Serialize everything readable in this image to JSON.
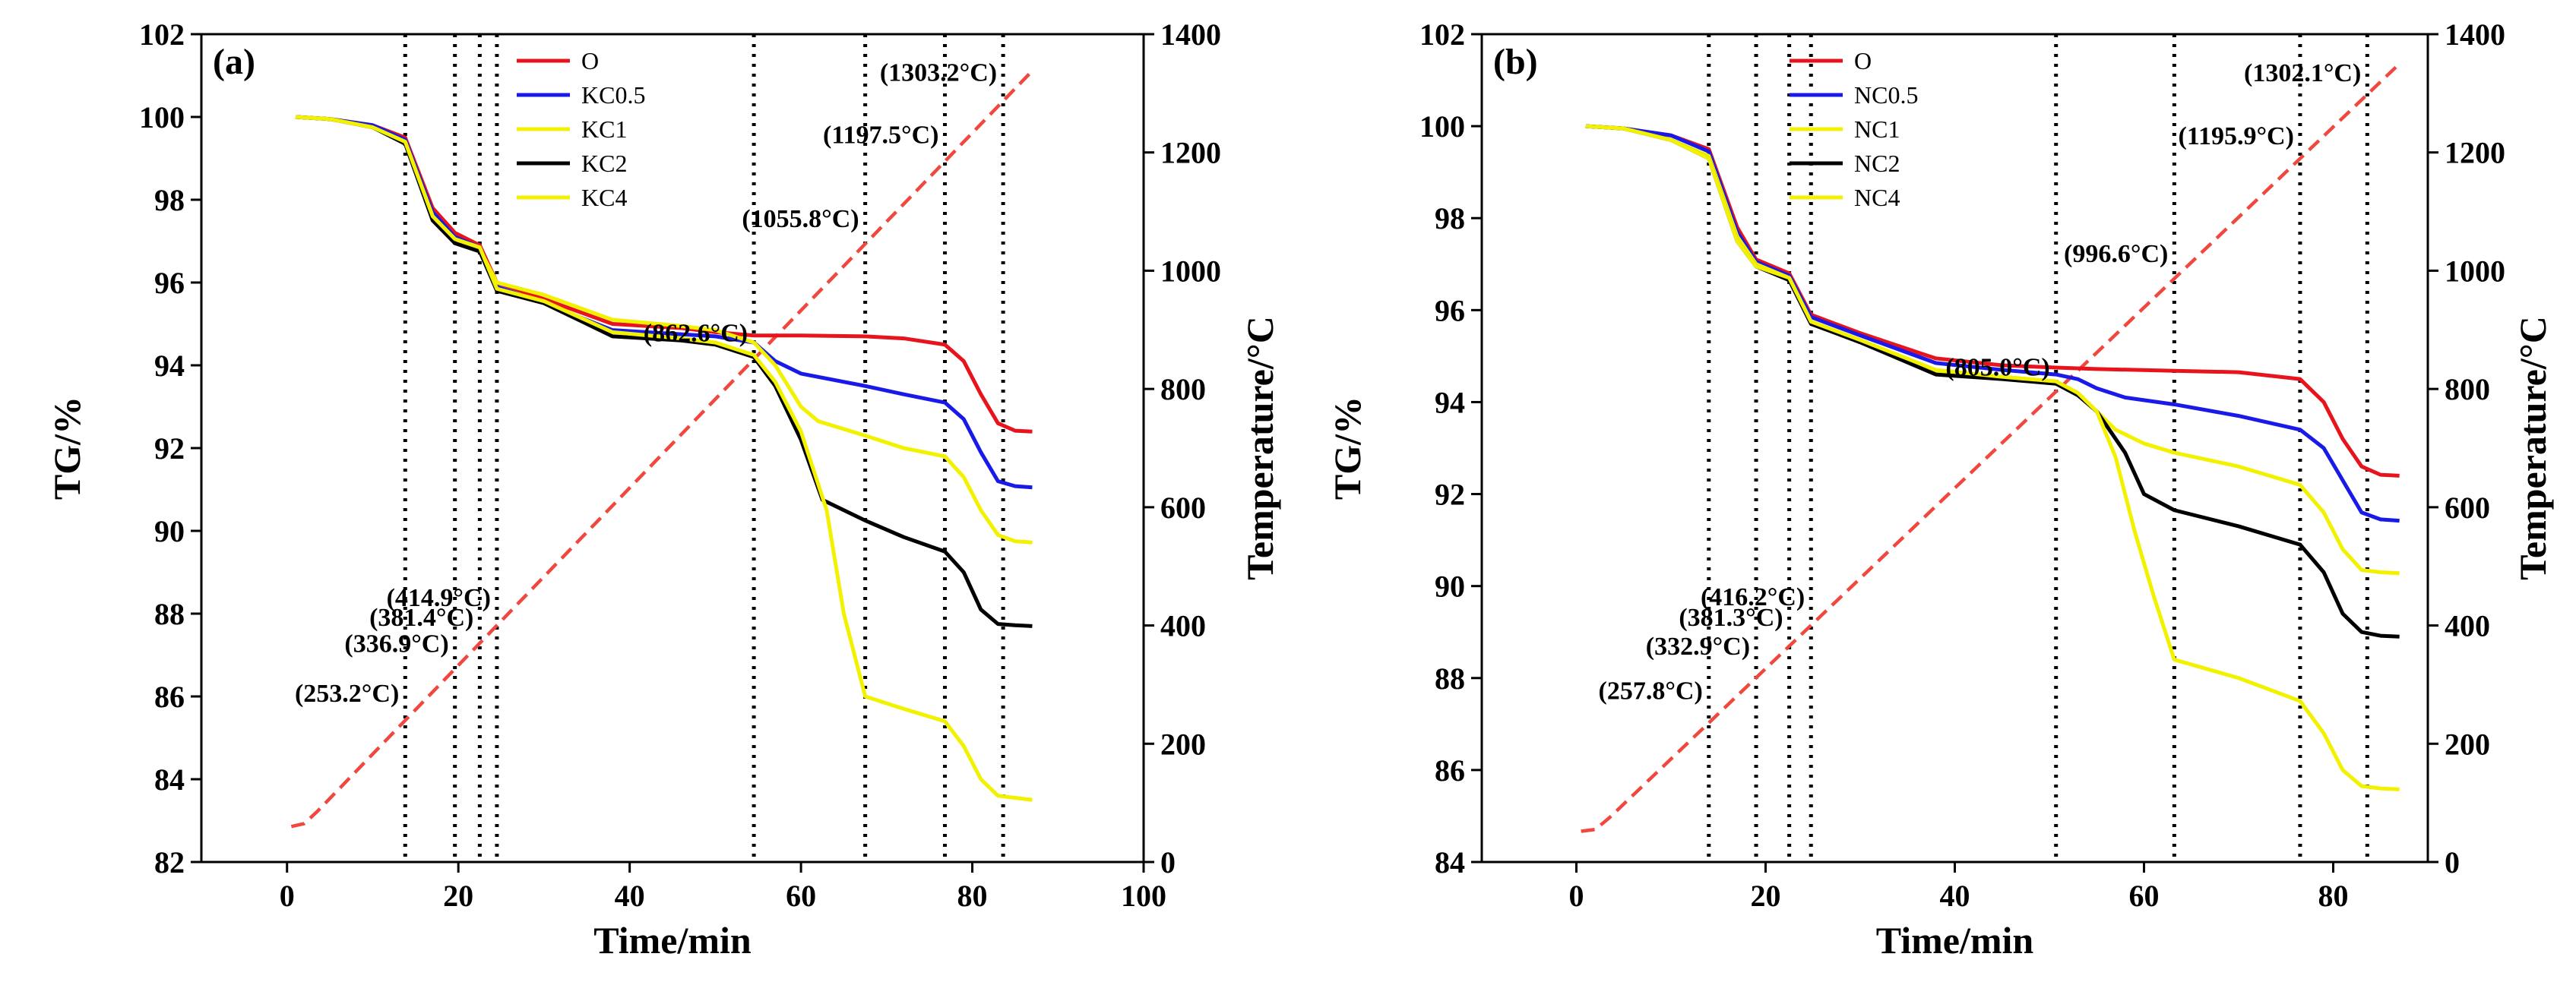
{
  "chart_data": [
    {
      "type": "line",
      "panel_label": "(a)",
      "xlabel": "Time/min",
      "ylabel": "TG/%",
      "y2label": "Temperature/°C",
      "xlim": [
        -10,
        100
      ],
      "ylim": [
        82,
        102
      ],
      "y2lim": [
        0,
        1400
      ],
      "xticks": [
        0,
        20,
        40,
        60,
        80,
        100
      ],
      "yticks": [
        82,
        84,
        86,
        88,
        90,
        92,
        94,
        96,
        98,
        100,
        102
      ],
      "y2ticks": [
        0,
        200,
        400,
        600,
        800,
        1000,
        1200,
        1400
      ],
      "vlines": [
        13.8,
        19.6,
        22.5,
        24.5,
        54.5,
        67.5,
        76.8,
        83.6
      ],
      "series": [
        {
          "name": "O",
          "color": "#e8141d",
          "x": [
            1,
            5,
            10,
            13.8,
            17,
            19.6,
            22.5,
            24.5,
            30,
            38,
            46,
            50,
            54.5,
            60,
            67.5,
            72,
            76.8,
            79,
            81,
            83,
            85,
            87
          ],
          "y": [
            100,
            99.95,
            99.8,
            99.5,
            97.8,
            97.2,
            96.9,
            96.0,
            95.6,
            95.0,
            94.9,
            94.8,
            94.72,
            94.72,
            94.7,
            94.65,
            94.5,
            94.1,
            93.3,
            92.6,
            92.42,
            92.4
          ]
        },
        {
          "name": "KC0.5",
          "color": "#1a1ae8",
          "x": [
            1,
            5,
            10,
            13.8,
            17,
            19.6,
            22.5,
            24.5,
            30,
            38,
            46,
            50,
            54.5,
            57,
            60,
            67.5,
            72,
            76.8,
            79,
            81,
            83,
            85,
            87
          ],
          "y": [
            100,
            99.95,
            99.8,
            99.45,
            97.7,
            97.1,
            96.85,
            95.9,
            95.5,
            94.85,
            94.75,
            94.7,
            94.55,
            94.1,
            93.8,
            93.5,
            93.3,
            93.1,
            92.7,
            91.9,
            91.2,
            91.08,
            91.05
          ]
        },
        {
          "name": "KC1",
          "color": "#f2f200",
          "x": [
            1,
            5,
            10,
            13.8,
            17,
            19.6,
            22.5,
            24.5,
            30,
            38,
            46,
            50,
            54.5,
            57,
            60,
            62,
            67.5,
            72,
            76.8,
            79,
            81,
            83,
            85,
            87
          ],
          "y": [
            100,
            99.95,
            99.75,
            99.4,
            97.6,
            97.05,
            96.8,
            96.0,
            95.7,
            95.1,
            94.95,
            94.85,
            94.55,
            94.0,
            93.0,
            92.65,
            92.3,
            92.0,
            91.8,
            91.3,
            90.5,
            89.9,
            89.75,
            89.72
          ]
        },
        {
          "name": "KC2",
          "color": "#000000",
          "x": [
            1,
            5,
            10,
            13.8,
            17,
            19.6,
            22.5,
            24.5,
            30,
            38,
            46,
            50,
            54.5,
            57,
            60,
            62.5,
            67.5,
            72,
            76.8,
            79,
            81,
            83,
            85,
            87
          ],
          "y": [
            100,
            99.95,
            99.75,
            99.35,
            97.5,
            96.95,
            96.75,
            95.8,
            95.5,
            94.7,
            94.6,
            94.5,
            94.2,
            93.5,
            92.2,
            90.75,
            90.25,
            89.85,
            89.5,
            89.0,
            88.1,
            87.75,
            87.72,
            87.7
          ]
        },
        {
          "name": "KC4",
          "color": "#f2f200",
          "x": [
            1,
            5,
            10,
            13.8,
            17,
            19.6,
            22.5,
            24.5,
            30,
            38,
            46,
            50,
            54.5,
            57,
            60,
            63,
            65,
            67.5,
            72,
            76.8,
            79,
            81,
            83,
            85,
            87
          ],
          "y": [
            100,
            99.95,
            99.75,
            99.4,
            97.6,
            97.05,
            96.85,
            95.85,
            95.55,
            94.8,
            94.65,
            94.55,
            94.25,
            93.6,
            92.4,
            90.5,
            88.0,
            86.0,
            85.7,
            85.4,
            84.8,
            84.0,
            83.6,
            83.55,
            83.5
          ]
        }
      ],
      "temperature": {
        "name": "Temperature",
        "color": "#f0483e",
        "x": [
          0.5,
          2,
          3.5,
          87
        ],
        "y": [
          60,
          65,
          85,
          1338
        ]
      },
      "annotations": [
        {
          "text": "(253.2°C)",
          "x": 13.8,
          "temp": 253.2,
          "align": "right"
        },
        {
          "text": "(336.9°C)",
          "x": 19.6,
          "temp": 336.9,
          "align": "right"
        },
        {
          "text": "(381.4°C)",
          "x": 22.5,
          "temp": 381.4,
          "align": "right"
        },
        {
          "text": "(414.9°C)",
          "x": 24.5,
          "temp": 414.9,
          "align": "right"
        },
        {
          "text": "(862.6°C)",
          "x": 54.5,
          "temp": 862.6,
          "align": "right"
        },
        {
          "text": "(1055.8°C)",
          "x": 67.5,
          "temp": 1055.8,
          "align": "right"
        },
        {
          "text": "(1197.5°C)",
          "x": 76.8,
          "temp": 1197.5,
          "align": "right"
        },
        {
          "text": "(1303.2°C)",
          "x": 83.6,
          "temp": 1303.2,
          "align": "right"
        }
      ]
    },
    {
      "type": "line",
      "panel_label": "(b)",
      "xlabel": "Time/min",
      "ylabel": "TG/%",
      "y2label": "Temperature/°C",
      "xlim": [
        -10,
        90
      ],
      "ylim": [
        84,
        102
      ],
      "y2lim": [
        0,
        1400
      ],
      "xticks": [
        0,
        20,
        40,
        60,
        80
      ],
      "yticks": [
        84,
        86,
        88,
        90,
        92,
        94,
        96,
        98,
        100,
        102
      ],
      "y2ticks": [
        0,
        200,
        400,
        600,
        800,
        1000,
        1200,
        1400
      ],
      "vlines": [
        14.0,
        19.0,
        22.5,
        24.8,
        50.7,
        63.2,
        76.5,
        83.6
      ],
      "series": [
        {
          "name": "O",
          "color": "#e8141d",
          "x": [
            1,
            5,
            10,
            14,
            17,
            19,
            22.5,
            24.8,
            30,
            38,
            45,
            50.7,
            55,
            63.2,
            70,
            76.5,
            79,
            81,
            83,
            85,
            87
          ],
          "y": [
            100,
            99.95,
            99.8,
            99.5,
            97.8,
            97.1,
            96.8,
            95.9,
            95.5,
            94.95,
            94.8,
            94.75,
            94.72,
            94.68,
            94.65,
            94.5,
            94.0,
            93.2,
            92.6,
            92.42,
            92.4
          ]
        },
        {
          "name": "NC0.5",
          "color": "#1a1ae8",
          "x": [
            1,
            5,
            10,
            14,
            17,
            19,
            22.5,
            24.8,
            30,
            38,
            45,
            50.7,
            53,
            55,
            58,
            63.2,
            70,
            76.5,
            79,
            81,
            83,
            85,
            87
          ],
          "y": [
            100,
            99.95,
            99.8,
            99.45,
            97.7,
            97.05,
            96.75,
            95.85,
            95.45,
            94.85,
            94.7,
            94.6,
            94.5,
            94.3,
            94.1,
            93.95,
            93.7,
            93.4,
            93.0,
            92.3,
            91.6,
            91.45,
            91.42
          ]
        },
        {
          "name": "NC1",
          "color": "#f2f200",
          "x": [
            1,
            5,
            10,
            14,
            17,
            19,
            22.5,
            24.8,
            30,
            38,
            45,
            50.7,
            53,
            55,
            57,
            60,
            63.2,
            70,
            76.5,
            79,
            81,
            83,
            85,
            87
          ],
          "y": [
            100,
            99.95,
            99.7,
            99.35,
            97.6,
            97.0,
            96.7,
            95.75,
            95.35,
            94.65,
            94.55,
            94.45,
            94.2,
            93.8,
            93.4,
            93.1,
            92.9,
            92.6,
            92.2,
            91.6,
            90.8,
            90.35,
            90.3,
            90.28
          ]
        },
        {
          "name": "NC2",
          "color": "#000000",
          "x": [
            1,
            5,
            10,
            14,
            17,
            19,
            22.5,
            24.8,
            30,
            38,
            45,
            50.7,
            53,
            55,
            58,
            60,
            63.2,
            70,
            76.5,
            79,
            81,
            83,
            85,
            87
          ],
          "y": [
            100,
            99.95,
            99.7,
            99.3,
            97.5,
            96.95,
            96.65,
            95.7,
            95.3,
            94.6,
            94.5,
            94.4,
            94.15,
            93.8,
            92.9,
            92.0,
            91.65,
            91.3,
            90.9,
            90.3,
            89.4,
            89.0,
            88.92,
            88.9
          ]
        },
        {
          "name": "NC4",
          "color": "#f2f200",
          "x": [
            1,
            5,
            10,
            14,
            17,
            19,
            22.5,
            24.8,
            30,
            38,
            45,
            50.7,
            53,
            55,
            57,
            59,
            61,
            63.2,
            70,
            76.5,
            79,
            81,
            83,
            85,
            87
          ],
          "y": [
            100,
            99.95,
            99.7,
            99.3,
            97.5,
            96.95,
            96.7,
            95.75,
            95.35,
            94.7,
            94.55,
            94.45,
            94.2,
            93.8,
            92.8,
            91.2,
            89.8,
            88.4,
            88.0,
            87.5,
            86.8,
            86.0,
            85.65,
            85.6,
            85.58
          ]
        }
      ],
      "temperature": {
        "name": "Temperature",
        "color": "#f0483e",
        "x": [
          0.5,
          2,
          3.5,
          87
        ],
        "y": [
          52,
          55,
          75,
          1350
        ]
      },
      "annotations": [
        {
          "text": "(257.8°C)",
          "x": 14.0,
          "temp": 257.8,
          "align": "right"
        },
        {
          "text": "(332.9°C)",
          "x": 19.0,
          "temp": 332.9,
          "align": "right"
        },
        {
          "text": "(381.3°C)",
          "x": 22.5,
          "temp": 381.3,
          "align": "right"
        },
        {
          "text": "(416.2°C)",
          "x": 24.8,
          "temp": 416.2,
          "align": "right"
        },
        {
          "text": "(805.0°C)",
          "x": 50.7,
          "temp": 805.0,
          "align": "right"
        },
        {
          "text": "(996.6°C)",
          "x": 63.2,
          "temp": 996.6,
          "align": "right"
        },
        {
          "text": "(1195.9°C)",
          "x": 76.5,
          "temp": 1195.9,
          "align": "right"
        },
        {
          "text": "(1302.1°C)",
          "x": 83.6,
          "temp": 1302.1,
          "align": "right"
        }
      ]
    }
  ]
}
